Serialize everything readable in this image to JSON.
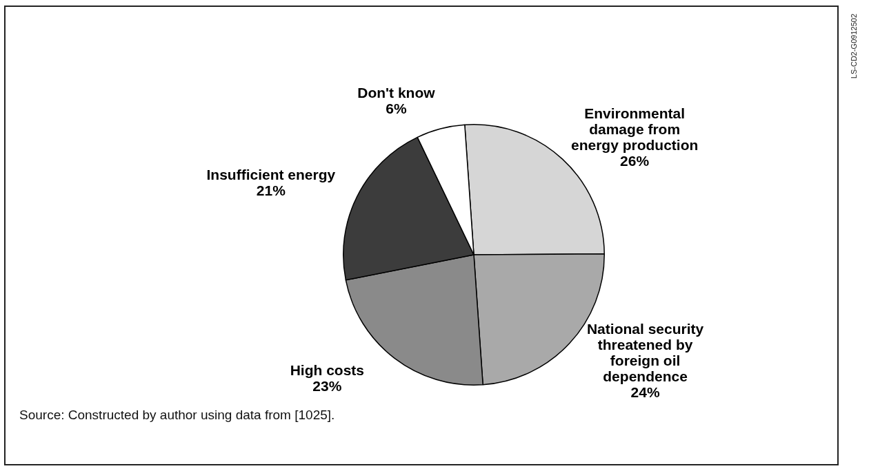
{
  "chart_data": {
    "type": "pie",
    "categories": [
      "Environmental damage from energy production",
      "National security threatened by foreign oil dependence",
      "High costs",
      "Insufficient energy",
      "Don't know"
    ],
    "values": [
      26,
      24,
      23,
      21,
      6
    ],
    "value_labels": [
      "26%",
      "24%",
      "23%",
      "21%",
      "6%"
    ],
    "colors": [
      "#d6d6d6",
      "#a9a9a9",
      "#8a8a8a",
      "#3c3c3c",
      "#ffffff"
    ],
    "legend": false,
    "annotations": [
      "Source: Constructed by author using data from [1025].",
      "LS-CD2-G0912502"
    ]
  }
}
